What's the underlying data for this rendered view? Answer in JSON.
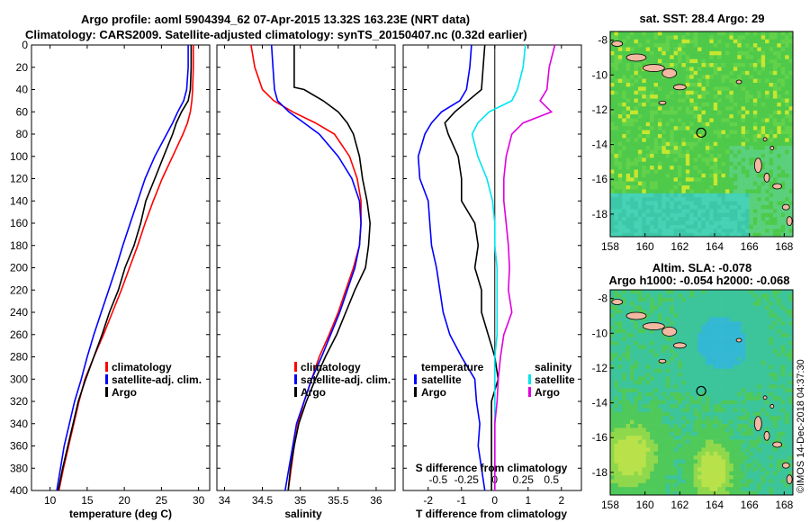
{
  "titles": {
    "line1": "Argo profile: aoml 5904394_62 07-Apr-2015 13.32S 163.23E (NRT data)",
    "line2": "Climatology: CARS2009. Satellite-adjusted climatology: synTS_20150407.nc (0.32d earlier)"
  },
  "colors": {
    "climatology": "#ff0000",
    "satellite": "#0000ff",
    "argo": "#000000",
    "sal_satellite": "#00e5ee",
    "sal_argo": "#e000e0",
    "land": "#f2b8a2"
  },
  "chart_data": [
    {
      "type": "line",
      "id": "temperature",
      "xlabel": "temperature (deg C)",
      "ylabel": "",
      "xlim": [
        7.5,
        31.5
      ],
      "ylim": [
        0,
        400
      ],
      "x_ticks": [
        "10",
        "15",
        "20",
        "25",
        "30"
      ],
      "x_tick_values": [
        10,
        15,
        20,
        25,
        30
      ],
      "y_ticks": [
        "0",
        "20",
        "40",
        "60",
        "80",
        "100",
        "120",
        "140",
        "160",
        "180",
        "200",
        "220",
        "240",
        "260",
        "280",
        "300",
        "320",
        "340",
        "360",
        "380",
        "400"
      ],
      "y_tick_values": [
        0,
        20,
        40,
        60,
        80,
        100,
        120,
        140,
        160,
        180,
        200,
        220,
        240,
        260,
        280,
        300,
        320,
        340,
        360,
        380,
        400
      ],
      "legend": [
        "climatology",
        "satellite-adj. clim.",
        "Argo"
      ],
      "series": [
        {
          "name": "climatology",
          "color": "#ff0000",
          "depth": [
            0,
            20,
            40,
            50,
            60,
            70,
            80,
            100,
            120,
            140,
            160,
            180,
            200,
            220,
            240,
            260,
            280,
            300,
            320,
            340,
            360,
            380,
            400
          ],
          "values": [
            29.3,
            29.3,
            29.2,
            29.1,
            28.9,
            28.5,
            27.9,
            26.5,
            25.1,
            23.9,
            22.8,
            21.8,
            20.7,
            19.6,
            18.4,
            17.2,
            15.9,
            14.7,
            13.9,
            13.2,
            12.5,
            11.8,
            11.2
          ]
        },
        {
          "name": "satellite-adj. clim.",
          "color": "#0000ff",
          "depth": [
            0,
            20,
            40,
            50,
            60,
            70,
            80,
            100,
            120,
            140,
            160,
            180,
            200,
            220,
            240,
            260,
            280,
            300,
            320,
            340,
            360,
            380,
            400
          ],
          "values": [
            28.6,
            28.6,
            28.4,
            28.0,
            27.2,
            26.5,
            25.7,
            24.1,
            22.8,
            21.8,
            20.8,
            19.8,
            18.9,
            17.9,
            16.9,
            15.9,
            15.0,
            14.2,
            13.3,
            12.6,
            11.9,
            11.4,
            10.9
          ]
        },
        {
          "name": "Argo",
          "color": "#000000",
          "depth": [
            0,
            20,
            40,
            50,
            60,
            70,
            80,
            100,
            120,
            140,
            160,
            180,
            200,
            220,
            240,
            260,
            280,
            300,
            320,
            340,
            360,
            380,
            400
          ],
          "values": [
            29.0,
            29.0,
            28.9,
            28.6,
            27.7,
            27.0,
            26.5,
            25.3,
            24.1,
            22.9,
            22.2,
            21.3,
            20.1,
            19.2,
            18.0,
            17.0,
            15.9,
            14.8,
            13.8,
            13.1,
            12.4,
            11.7,
            11.1
          ]
        }
      ]
    },
    {
      "type": "line",
      "id": "salinity",
      "xlabel": "salinity",
      "ylabel": "",
      "xlim": [
        33.9,
        36.25
      ],
      "ylim": [
        0,
        400
      ],
      "x_ticks": [
        "34",
        "34.5",
        "35",
        "35.5",
        "36"
      ],
      "x_tick_values": [
        34,
        34.5,
        35,
        35.5,
        36
      ],
      "legend": [
        "climatology",
        "satellite-adj. clim.",
        "Argo"
      ],
      "series": [
        {
          "name": "climatology",
          "color": "#ff0000",
          "depth": [
            0,
            20,
            40,
            50,
            60,
            70,
            80,
            100,
            120,
            140,
            160,
            180,
            200,
            220,
            240,
            260,
            280,
            300,
            320,
            340,
            360,
            380,
            400
          ],
          "values": [
            34.35,
            34.4,
            34.5,
            34.65,
            34.9,
            35.2,
            35.45,
            35.65,
            35.75,
            35.8,
            35.8,
            35.78,
            35.7,
            35.6,
            35.5,
            35.38,
            35.25,
            35.15,
            35.05,
            34.97,
            34.92,
            34.88,
            34.84
          ]
        },
        {
          "name": "satellite-adj. clim.",
          "color": "#0000ff",
          "depth": [
            0,
            20,
            40,
            50,
            60,
            70,
            80,
            100,
            120,
            140,
            160,
            180,
            200,
            220,
            240,
            260,
            280,
            300,
            320,
            340,
            360,
            380,
            400
          ],
          "values": [
            34.62,
            34.64,
            34.66,
            34.7,
            34.85,
            35.05,
            35.25,
            35.5,
            35.68,
            35.78,
            35.8,
            35.78,
            35.72,
            35.62,
            35.52,
            35.4,
            35.28,
            35.15,
            35.05,
            34.95,
            34.9,
            34.85,
            34.8
          ]
        },
        {
          "name": "Argo",
          "color": "#000000",
          "depth": [
            0,
            20,
            38,
            40,
            50,
            60,
            70,
            80,
            100,
            120,
            140,
            160,
            180,
            200,
            220,
            240,
            260,
            280,
            300,
            320,
            340,
            360,
            380,
            400
          ],
          "values": [
            34.92,
            34.92,
            34.92,
            35.05,
            35.3,
            35.5,
            35.62,
            35.7,
            35.78,
            35.82,
            35.88,
            35.92,
            35.9,
            35.86,
            35.72,
            35.6,
            35.48,
            35.33,
            35.2,
            35.08,
            34.98,
            34.92,
            34.87,
            34.84
          ]
        }
      ]
    },
    {
      "type": "line",
      "id": "difference",
      "xlabel": "T difference from climatology",
      "xlabel_top": "S difference from climatology",
      "xlim": [
        -2.75,
        2.6
      ],
      "ylim": [
        0,
        400
      ],
      "x_ticks": [
        "-2",
        "-1",
        "0",
        "1",
        "2"
      ],
      "x_tick_values": [
        -2,
        -1,
        0,
        1,
        2
      ],
      "s_ticks": [
        "-0.5",
        "-0.25",
        "0",
        "0.25",
        "0.5"
      ],
      "s_tick_values": [
        -0.5,
        -0.25,
        0,
        0.25,
        0.5
      ],
      "s_scale": 3.4,
      "legend_left_title": "temperature",
      "legend_right_title": "salinity",
      "legend_left": [
        "satellite",
        "Argo"
      ],
      "legend_right": [
        "satellite",
        "Argo"
      ],
      "series": [
        {
          "name": "temperature satellite",
          "color": "#0000ff",
          "depth": [
            0,
            20,
            40,
            50,
            60,
            70,
            80,
            100,
            120,
            140,
            160,
            180,
            200,
            220,
            240,
            260,
            280,
            300,
            320,
            340,
            360,
            380,
            400
          ],
          "values": [
            -0.7,
            -0.75,
            -0.85,
            -1.05,
            -1.6,
            -1.9,
            -2.1,
            -2.3,
            -2.25,
            -2.0,
            -1.95,
            -1.9,
            -1.75,
            -1.65,
            -1.55,
            -1.35,
            -1.0,
            -0.6,
            -0.55,
            -0.45,
            -0.5,
            -0.4,
            -0.3
          ]
        },
        {
          "name": "temperature Argo",
          "color": "#000000",
          "depth": [
            0,
            20,
            40,
            60,
            70,
            80,
            100,
            120,
            140,
            160,
            180,
            200,
            220,
            240,
            260,
            280,
            300,
            320,
            340,
            360,
            380,
            400
          ],
          "values": [
            -0.3,
            -0.35,
            -0.4,
            -1.2,
            -1.5,
            -1.4,
            -1.1,
            -1.0,
            -1.0,
            -0.6,
            -0.5,
            -0.6,
            -0.4,
            -0.4,
            -0.2,
            0.0,
            0.1,
            -0.1,
            -0.1,
            -0.1,
            -0.1,
            -0.1
          ]
        },
        {
          "name": "salinity satellite",
          "color": "#00e5ee",
          "depth": [
            0,
            20,
            40,
            50,
            60,
            70,
            80,
            100,
            120,
            140,
            160,
            180,
            200,
            220,
            240,
            260,
            280,
            300,
            320,
            340,
            360,
            380,
            400
          ],
          "values": [
            0.27,
            0.25,
            0.2,
            0.15,
            -0.05,
            -0.15,
            -0.2,
            -0.15,
            -0.07,
            -0.02,
            0.0,
            0.0,
            0.02,
            0.02,
            0.02,
            0.02,
            0.0,
            0.0,
            0.0,
            0.0,
            0.0,
            0.0,
            0.0
          ]
        },
        {
          "name": "salinity Argo",
          "color": "#e000e0",
          "depth": [
            0,
            20,
            40,
            50,
            60,
            70,
            80,
            100,
            120,
            140,
            160,
            180,
            200,
            220,
            240,
            260,
            280,
            300,
            320,
            340,
            360,
            380,
            400
          ],
          "values": [
            0.53,
            0.48,
            0.46,
            0.4,
            0.5,
            0.25,
            0.15,
            0.1,
            0.08,
            0.08,
            0.1,
            0.12,
            0.13,
            0.12,
            0.15,
            0.08,
            0.05,
            0.03,
            0.02,
            0.0,
            0.0,
            0.0,
            0.0
          ]
        }
      ]
    },
    {
      "type": "heatmap",
      "id": "sst_map",
      "title": "sat. SST: 28.4 Argo: 29",
      "xlim": [
        158,
        168.5
      ],
      "ylim": [
        -19.3,
        -7.5
      ],
      "x_ticks": [
        "158",
        "160",
        "162",
        "164",
        "166",
        "168"
      ],
      "x_tick_values": [
        158,
        160,
        162,
        164,
        166,
        168
      ],
      "y_ticks": [
        "-8",
        "-10",
        "-12",
        "-14",
        "-16",
        "-18"
      ],
      "y_tick_values": [
        -8,
        -10,
        -12,
        -14,
        -16,
        -18
      ],
      "profile_lon": 163.23,
      "profile_lat": -13.32
    },
    {
      "type": "heatmap",
      "id": "sla_map",
      "title": "Altim. SLA: -0.078",
      "subtitle": "Argo h1000: -0.054 h2000: -0.068",
      "xlim": [
        158,
        168.5
      ],
      "ylim": [
        -19.3,
        -7.5
      ],
      "x_ticks": [
        "158",
        "160",
        "162",
        "164",
        "166",
        "168"
      ],
      "x_tick_values": [
        158,
        160,
        162,
        164,
        166,
        168
      ],
      "y_ticks": [
        "-8",
        "-10",
        "-12",
        "-14",
        "-16",
        "-18"
      ],
      "y_tick_values": [
        -8,
        -10,
        -12,
        -14,
        -16,
        -18
      ],
      "profile_lon": 163.23,
      "profile_lat": -13.32
    }
  ],
  "footer": "©IMOS 14-Dec-2018 04:37:30"
}
